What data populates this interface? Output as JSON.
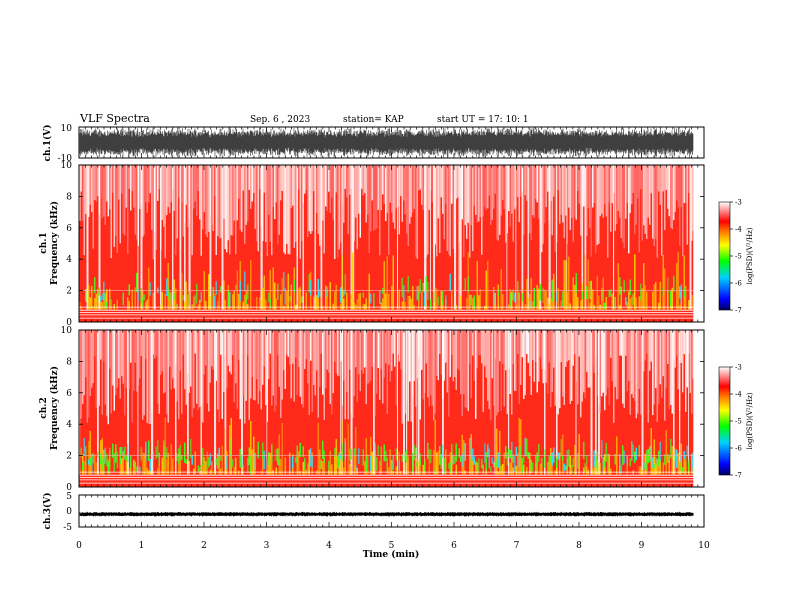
{
  "header": {
    "title": "VLF Spectra",
    "date": "Sep. 6  , 2023",
    "station": "station= KAP",
    "start": "start  UT  =   17: 10: 1"
  },
  "chart_data": [
    {
      "type": "line",
      "id": "ch1",
      "ylabel": "ch.1(V)",
      "ylim": [
        -10,
        10
      ],
      "yticks": [
        "10",
        "-10"
      ],
      "note": "dense waveform filling most of range"
    },
    {
      "type": "heatmap",
      "id": "ch1-spectrogram",
      "ylabel_line1": "ch.1",
      "ylabel_line2": "Frequency  (kHz)",
      "ylim": [
        0,
        10
      ],
      "yticks": [
        "0",
        "2",
        "4",
        "6",
        "8",
        "10"
      ],
      "colorbar": {
        "label": "log(PSD)(V²/Hz)",
        "ticks": [
          "-3",
          "-4",
          "-5",
          "-6",
          "-7"
        ],
        "range": [
          -7,
          -3
        ]
      }
    },
    {
      "type": "heatmap",
      "id": "ch2-spectrogram",
      "ylabel_line1": "ch.2",
      "ylabel_line2": "Frequency  (kHz)",
      "ylim": [
        0,
        10
      ],
      "yticks": [
        "0",
        "2",
        "4",
        "6",
        "8",
        "10"
      ],
      "colorbar": {
        "label": "log(PSD)(V²/Hz)",
        "ticks": [
          "-3",
          "-4",
          "-5",
          "-6",
          "-7"
        ],
        "range": [
          -7,
          -3
        ]
      }
    },
    {
      "type": "line",
      "id": "ch3",
      "ylabel": "ch.3(V)",
      "ylim": [
        -5,
        5
      ],
      "yticks": [
        "5",
        "0",
        "-5"
      ],
      "note": "narrow band around -1 V"
    }
  ],
  "xaxis": {
    "label": "Time  (min)",
    "ticks": [
      "0",
      "1",
      "2",
      "3",
      "4",
      "5",
      "6",
      "7",
      "8",
      "9",
      "10"
    ],
    "xlim": [
      0,
      10
    ],
    "data_end": 9.83
  },
  "colors": {
    "scale": [
      "#000080",
      "#0000ff",
      "#00c8ff",
      "#00ff00",
      "#ffff00",
      "#ff8000",
      "#ff0000",
      "#ffc8c8",
      "#ffffff"
    ]
  }
}
